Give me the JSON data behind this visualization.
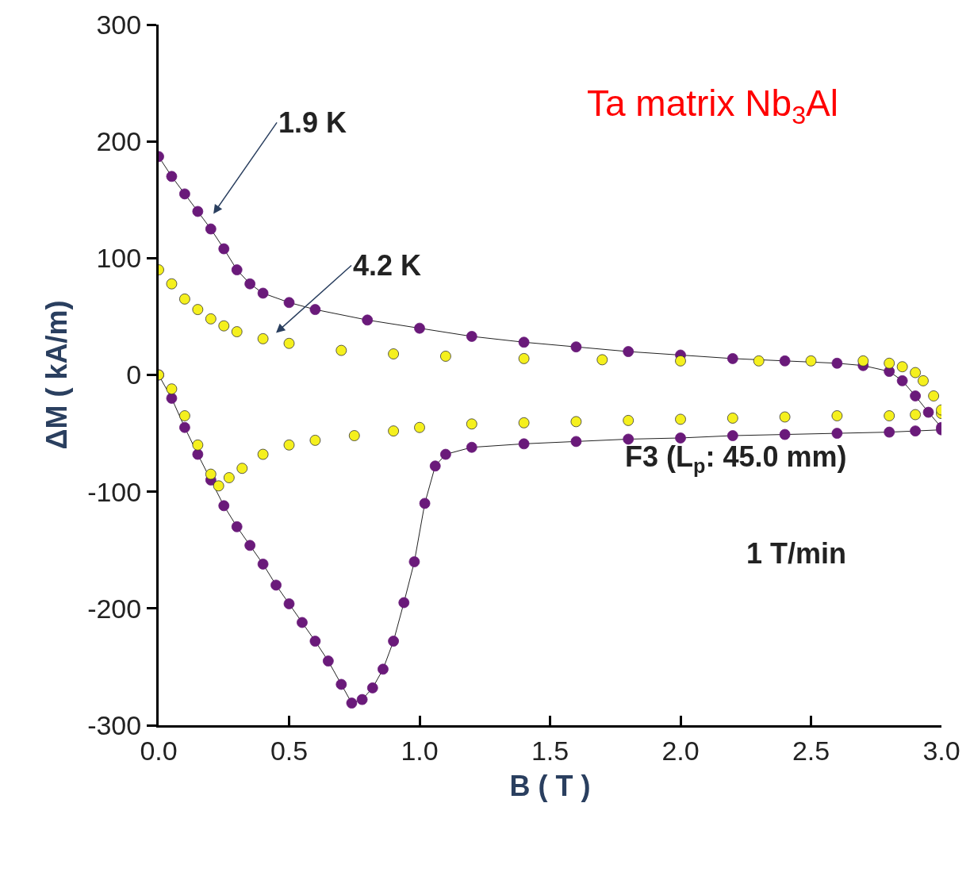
{
  "chart_data": {
    "type": "scatter",
    "xlabel": "B ( T )",
    "ylabel": "ΔM ( kA/m)",
    "xlim": [
      0,
      3
    ],
    "ylim": [
      -300,
      300
    ],
    "xticks": [
      {
        "value": 0,
        "label": "0.0"
      },
      {
        "value": 0.5,
        "label": "0.5"
      },
      {
        "value": 1,
        "label": "1.0"
      },
      {
        "value": 1.5,
        "label": "1.5"
      },
      {
        "value": 2,
        "label": "2.0"
      },
      {
        "value": 2.5,
        "label": "2.5"
      },
      {
        "value": 3,
        "label": "3.0"
      }
    ],
    "yticks": [
      -300,
      -200,
      -100,
      0,
      100,
      200,
      300
    ],
    "legend": false,
    "marker": "circle",
    "series": [
      {
        "type": "line",
        "color": "#6a1a7a",
        "x": [
          0,
          0.05,
          0.1,
          0.15,
          0.2,
          0.25,
          0.3,
          0.35,
          0.4,
          0.45,
          0.5,
          0.55,
          0.6,
          0.65,
          0.7,
          0.74,
          0.78,
          0.82,
          0.86,
          0.9,
          0.94,
          0.98,
          1.02,
          1.06,
          1.1,
          1.2,
          1.4,
          1.6,
          1.8,
          2.0,
          2.2,
          2.4,
          2.6,
          2.8,
          2.9,
          3.0,
          3.0,
          2.95,
          2.9,
          2.85,
          2.8,
          2.7,
          2.6,
          2.4,
          2.2,
          2.0,
          1.8,
          1.6,
          1.4,
          1.2,
          1.0,
          0.8,
          0.6,
          0.5,
          0.4,
          0.35,
          0.3,
          0.25,
          0.2,
          0.15,
          0.1,
          0.05,
          0
        ],
        "values": [
          0,
          -20,
          -45,
          -68,
          -90,
          -112,
          -130,
          -146,
          -162,
          -180,
          -196,
          -212,
          -228,
          -245,
          -265,
          -281,
          -278,
          -268,
          -252,
          -228,
          -195,
          -160,
          -110,
          -78,
          -68,
          -62,
          -59,
          -57,
          -55,
          -54,
          -52,
          -51,
          -50,
          -49,
          -48,
          -47,
          -45,
          -32,
          -18,
          -5,
          3,
          8,
          10,
          12,
          14,
          17,
          20,
          24,
          28,
          33,
          40,
          47,
          56,
          62,
          70,
          78,
          90,
          108,
          125,
          140,
          155,
          170,
          187
        ]
      },
      {
        "color": "#f5f01e",
        "x": [
          0,
          0.05,
          0.1,
          0.15,
          0.2,
          0.23,
          0.27,
          0.32,
          0.4,
          0.5,
          0.6,
          0.75,
          0.9,
          1.0,
          1.2,
          1.4,
          1.6,
          1.8,
          2.0,
          2.2,
          2.4,
          2.6,
          2.8,
          2.9,
          3.0,
          3.0,
          2.97,
          2.93,
          2.9,
          2.85,
          2.8,
          2.7,
          2.5,
          2.3,
          2.0,
          1.7,
          1.4,
          1.1,
          0.9,
          0.7,
          0.5,
          0.4,
          0.3,
          0.25,
          0.2,
          0.15,
          0.1,
          0.05,
          0
        ],
        "values": [
          0,
          -12,
          -35,
          -60,
          -85,
          -95,
          -88,
          -80,
          -68,
          -60,
          -56,
          -52,
          -48,
          -45,
          -42,
          -41,
          -40,
          -39,
          -38,
          -37,
          -36,
          -35,
          -35,
          -34,
          -33,
          -30,
          -18,
          -5,
          2,
          7,
          10,
          12,
          12,
          12,
          12,
          13,
          14,
          16,
          18,
          21,
          27,
          31,
          37,
          42,
          48,
          56,
          65,
          78,
          90
        ]
      }
    ],
    "annotations": [
      "1.9 K",
      "4.2 K",
      "Ta matrix Nb$_{3}$Al",
      "F3 (L$_{p}$: 45.0 mm)",
      "1 T/min"
    ]
  }
}
